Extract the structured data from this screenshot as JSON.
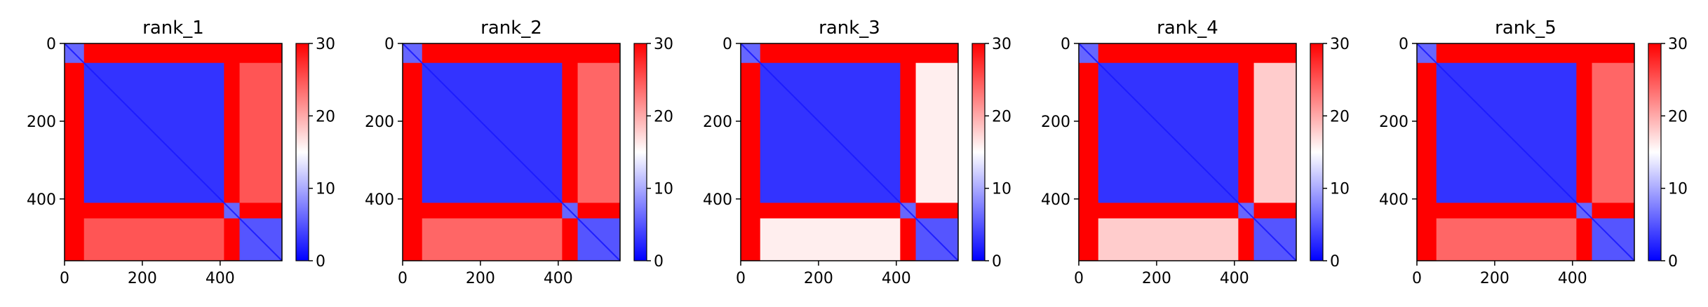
{
  "chart_data": [
    {
      "type": "heatmap",
      "title": "rank_1",
      "x_ticks": [
        0,
        200,
        400
      ],
      "y_ticks": [
        0,
        200,
        400
      ],
      "xlim": [
        0,
        559
      ],
      "ylim": [
        559,
        0
      ],
      "colorbar": {
        "ticks": [
          0,
          10,
          20,
          30
        ],
        "vmin": 0,
        "vmax": 30,
        "colormap": "bwr"
      },
      "blocks": [
        {
          "x": [
            0,
            50
          ],
          "y": [
            0,
            50
          ],
          "value": 6
        },
        {
          "x": [
            50,
            410
          ],
          "y": [
            50,
            410
          ],
          "value": 3
        },
        {
          "x": [
            410,
            450
          ],
          "y": [
            410,
            450
          ],
          "value": 6
        },
        {
          "x": [
            450,
            559
          ],
          "y": [
            450,
            559
          ],
          "value": 5
        },
        {
          "x": [
            450,
            559
          ],
          "y": [
            50,
            410
          ],
          "value": 25
        },
        {
          "x": [
            50,
            410
          ],
          "y": [
            450,
            559
          ],
          "value": 25
        }
      ],
      "background_value": 30
    },
    {
      "type": "heatmap",
      "title": "rank_2",
      "x_ticks": [
        0,
        200,
        400
      ],
      "y_ticks": [
        0,
        200,
        400
      ],
      "xlim": [
        0,
        559
      ],
      "ylim": [
        559,
        0
      ],
      "colorbar": {
        "ticks": [
          0,
          10,
          20,
          30
        ],
        "vmin": 0,
        "vmax": 30,
        "colormap": "bwr"
      },
      "blocks": [
        {
          "x": [
            0,
            50
          ],
          "y": [
            0,
            50
          ],
          "value": 6
        },
        {
          "x": [
            50,
            410
          ],
          "y": [
            50,
            410
          ],
          "value": 3
        },
        {
          "x": [
            410,
            450
          ],
          "y": [
            410,
            450
          ],
          "value": 6
        },
        {
          "x": [
            450,
            559
          ],
          "y": [
            450,
            559
          ],
          "value": 5
        },
        {
          "x": [
            450,
            559
          ],
          "y": [
            50,
            410
          ],
          "value": 24
        },
        {
          "x": [
            50,
            410
          ],
          "y": [
            450,
            559
          ],
          "value": 24
        }
      ],
      "background_value": 30
    },
    {
      "type": "heatmap",
      "title": "rank_3",
      "x_ticks": [
        0,
        200,
        400
      ],
      "y_ticks": [
        0,
        200,
        400
      ],
      "xlim": [
        0,
        559
      ],
      "ylim": [
        559,
        0
      ],
      "colorbar": {
        "ticks": [
          0,
          10,
          20,
          30
        ],
        "vmin": 0,
        "vmax": 30,
        "colormap": "bwr"
      },
      "blocks": [
        {
          "x": [
            0,
            50
          ],
          "y": [
            0,
            50
          ],
          "value": 6
        },
        {
          "x": [
            50,
            410
          ],
          "y": [
            50,
            410
          ],
          "value": 3
        },
        {
          "x": [
            410,
            450
          ],
          "y": [
            410,
            450
          ],
          "value": 6
        },
        {
          "x": [
            450,
            559
          ],
          "y": [
            450,
            559
          ],
          "value": 5
        },
        {
          "x": [
            450,
            559
          ],
          "y": [
            50,
            410
          ],
          "value": 16
        },
        {
          "x": [
            50,
            410
          ],
          "y": [
            450,
            559
          ],
          "value": 16
        }
      ],
      "background_value": 30
    },
    {
      "type": "heatmap",
      "title": "rank_4",
      "x_ticks": [
        0,
        200,
        400
      ],
      "y_ticks": [
        0,
        200,
        400
      ],
      "xlim": [
        0,
        559
      ],
      "ylim": [
        559,
        0
      ],
      "colorbar": {
        "ticks": [
          0,
          10,
          20,
          30
        ],
        "vmin": 0,
        "vmax": 30,
        "colormap": "bwr"
      },
      "blocks": [
        {
          "x": [
            0,
            50
          ],
          "y": [
            0,
            50
          ],
          "value": 6
        },
        {
          "x": [
            50,
            410
          ],
          "y": [
            50,
            410
          ],
          "value": 3
        },
        {
          "x": [
            410,
            450
          ],
          "y": [
            410,
            450
          ],
          "value": 6
        },
        {
          "x": [
            450,
            559
          ],
          "y": [
            450,
            559
          ],
          "value": 5
        },
        {
          "x": [
            450,
            559
          ],
          "y": [
            50,
            410
          ],
          "value": 18
        },
        {
          "x": [
            50,
            410
          ],
          "y": [
            450,
            559
          ],
          "value": 18
        }
      ],
      "background_value": 30
    },
    {
      "type": "heatmap",
      "title": "rank_5",
      "x_ticks": [
        0,
        200,
        400
      ],
      "y_ticks": [
        0,
        200,
        400
      ],
      "xlim": [
        0,
        559
      ],
      "ylim": [
        559,
        0
      ],
      "colorbar": {
        "ticks": [
          0,
          10,
          20,
          30
        ],
        "vmin": 0,
        "vmax": 30,
        "colormap": "bwr"
      },
      "blocks": [
        {
          "x": [
            0,
            50
          ],
          "y": [
            0,
            50
          ],
          "value": 6
        },
        {
          "x": [
            50,
            410
          ],
          "y": [
            50,
            410
          ],
          "value": 3
        },
        {
          "x": [
            410,
            450
          ],
          "y": [
            410,
            450
          ],
          "value": 6
        },
        {
          "x": [
            450,
            559
          ],
          "y": [
            450,
            559
          ],
          "value": 5
        },
        {
          "x": [
            450,
            559
          ],
          "y": [
            50,
            410
          ],
          "value": 24
        },
        {
          "x": [
            50,
            410
          ],
          "y": [
            450,
            559
          ],
          "value": 24
        }
      ],
      "background_value": 30
    }
  ]
}
